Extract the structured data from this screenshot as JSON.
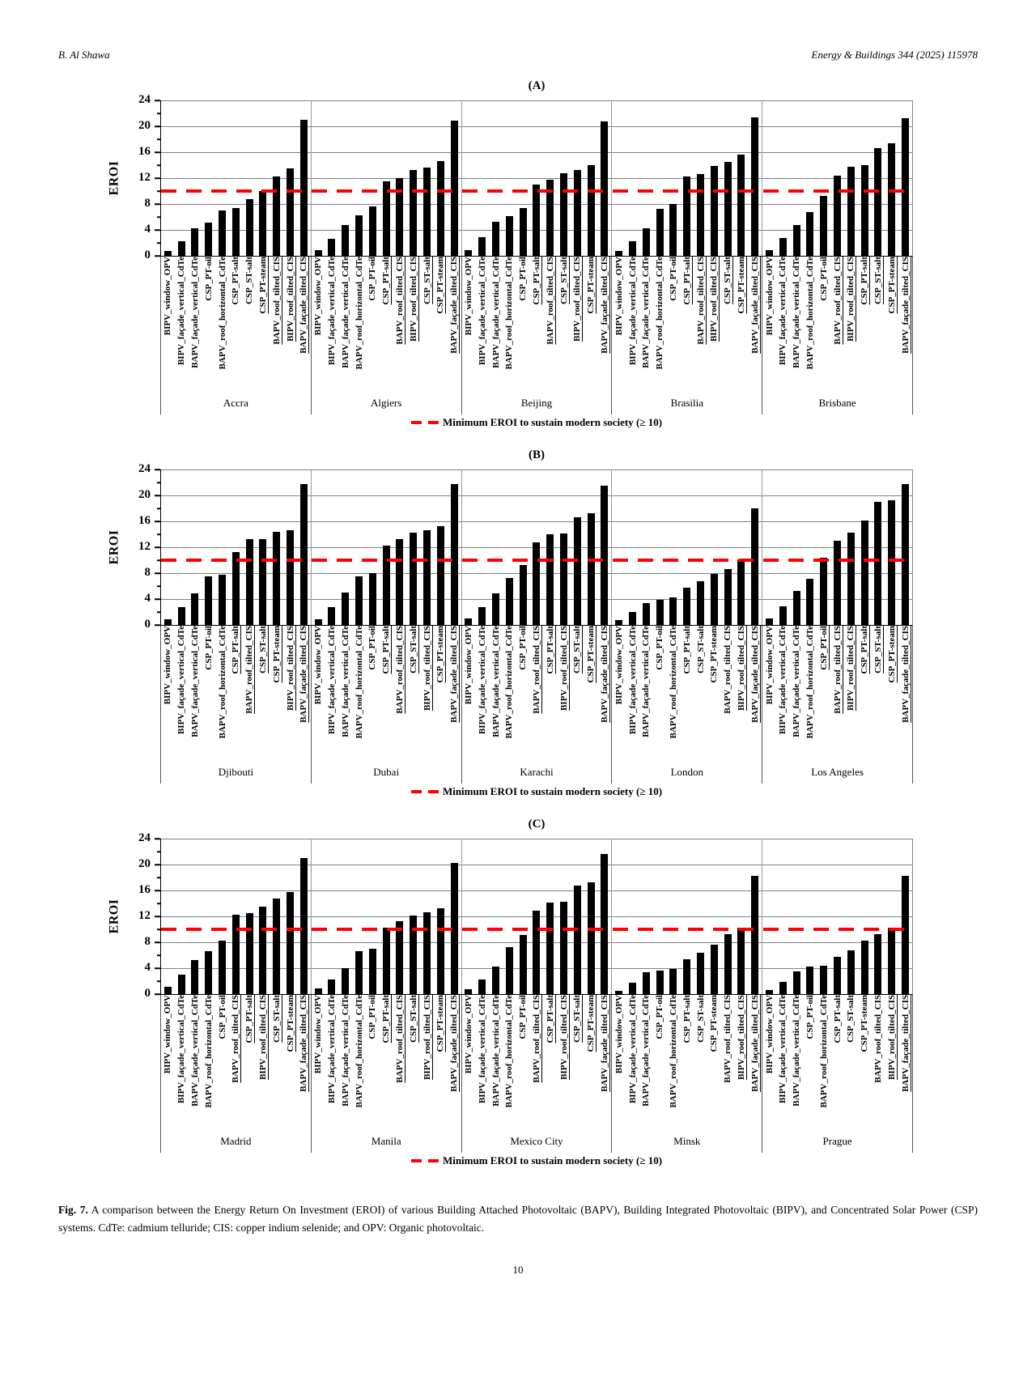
{
  "header": {
    "author": "B. Al Shawa",
    "journal": "Energy & Buildings 344 (2025) 115978"
  },
  "page_number": "10",
  "caption": {
    "label": "Fig. 7.",
    "text": "A comparison between the Energy Return On Investment (EROI) of various Building Attached Photovoltaic (BAPV), Building Integrated Photovoltaic (BIPV), and Concentrated Solar Power (CSP) systems. CdTe: cadmium telluride; CIS: copper indium selenide; and OPV: Organic photovoltaic."
  },
  "colors": {
    "bar": "#000000",
    "threshold_line": "#ff0000",
    "gridline": "#808080"
  },
  "chart_data": [
    {
      "type": "bar",
      "title": "(A)",
      "ylabel": "EROI",
      "ylim": [
        0,
        24
      ],
      "yticks": [
        0,
        4,
        8,
        12,
        16,
        20,
        24
      ],
      "minor_tick_step": 2,
      "grid": true,
      "threshold": 10,
      "legend": "Minimum EROI to sustain modern society (≥ 10)",
      "legend_position": "bottom",
      "groups": [
        {
          "city": "Accra",
          "bars": [
            [
              "BIPV_window_OPV",
              0.8
            ],
            [
              "BIPV_façade_vertical_CdTe",
              2.3
            ],
            [
              "BAPV_façade_vertical_CdTe",
              4.3
            ],
            [
              "CSP_PT-oil",
              5.1
            ],
            [
              "BAPV_roof_horizontal_CdTe",
              7.0
            ],
            [
              "CSP_PT-salt",
              7.4
            ],
            [
              "CSP_ST-salt",
              8.8
            ],
            [
              "CSP_PT-steam",
              10.0
            ],
            [
              "BAPV_roof_tilted_CIS",
              12.2
            ],
            [
              "BIPV_roof_tilted_CIS",
              13.5
            ],
            [
              "BAPV_façade_tilted_CIS",
              21.0
            ]
          ]
        },
        {
          "city": "Algiers",
          "bars": [
            [
              "BIPV_window_OPV",
              0.9
            ],
            [
              "BIPV_façade_vertical_CdTe",
              2.6
            ],
            [
              "BAPV_façade_vertical_CdTe",
              4.7
            ],
            [
              "BAPV_roof_horizontal_CdTe",
              6.3
            ],
            [
              "CSP_PT-oil",
              7.6
            ],
            [
              "CSP_PT-salt",
              11.5
            ],
            [
              "BAPV_roof_tilted_CIS",
              12.0
            ],
            [
              "BIPV_roof_tilted_CIS",
              13.2
            ],
            [
              "CSP_ST-salt",
              13.6
            ],
            [
              "CSP_PT-steam",
              14.6
            ],
            [
              "BAPV_façade_tilted_CIS",
              20.9
            ]
          ]
        },
        {
          "city": "Beijing",
          "bars": [
            [
              "BIPV_window_OPV",
              0.9
            ],
            [
              "BIPV_façade_vertical_CdTe",
              2.9
            ],
            [
              "BAPV_façade_vertical_CdTe",
              5.2
            ],
            [
              "BAPV_roof_horizontal_CdTe",
              6.1
            ],
            [
              "CSP_PT-oil",
              7.4
            ],
            [
              "CSP_PT-salt",
              11.0
            ],
            [
              "BAPV_roof_tilted_CIS",
              11.8
            ],
            [
              "CSP_ST-salt",
              12.8
            ],
            [
              "BIPV_roof_tilted_CIS",
              13.2
            ],
            [
              "CSP_PT-steam",
              14.0
            ],
            [
              "BAPV_façade_tilted_CIS",
              20.8
            ]
          ]
        },
        {
          "city": "Brasilia",
          "bars": [
            [
              "BIPV_window_OPV",
              0.7
            ],
            [
              "BIPV_façade_vertical_CdTe",
              2.3
            ],
            [
              "BAPV_façade_vertical_CdTe",
              4.3
            ],
            [
              "BAPV_roof_horizontal_CdTe",
              7.3
            ],
            [
              "CSP_PT-oil",
              8.0
            ],
            [
              "CSP_PT-salt",
              12.3
            ],
            [
              "BAPV_roof_tilted_CIS",
              12.6
            ],
            [
              "BIPV_roof_tilted_CIS",
              13.9
            ],
            [
              "CSP_ST-salt",
              14.5
            ],
            [
              "CSP_PT-steam",
              15.6
            ],
            [
              "BAPV_façade_tilted_CIS",
              21.4
            ]
          ]
        },
        {
          "city": "Brisbane",
          "bars": [
            [
              "BIPV_window_OPV",
              0.9
            ],
            [
              "BIPV_façade_vertical_CdTe",
              2.7
            ],
            [
              "BAPV_façade_vertical_CdTe",
              4.8
            ],
            [
              "BAPV_roof_horizontal_CdTe",
              6.8
            ],
            [
              "CSP_PT-oil",
              9.2
            ],
            [
              "BAPV_roof_tilted_CIS",
              12.4
            ],
            [
              "BIPV_roof_tilted_CIS",
              13.7
            ],
            [
              "CSP_PT-salt",
              14.0
            ],
            [
              "CSP_ST-salt",
              16.6
            ],
            [
              "CSP_PT-steam",
              17.4
            ],
            [
              "BAPV_façade_tilted_CIS",
              21.3
            ]
          ]
        }
      ]
    },
    {
      "type": "bar",
      "title": "(B)",
      "ylabel": "EROI",
      "ylim": [
        0,
        24
      ],
      "yticks": [
        0,
        4,
        8,
        12,
        16,
        20,
        24
      ],
      "minor_tick_step": 2,
      "grid": true,
      "threshold": 10,
      "legend": "Minimum EROI to sustain modern society (≥ 10)",
      "legend_position": "bottom",
      "groups": [
        {
          "city": "Djibouti",
          "bars": [
            [
              "BIPV_window_OPV",
              0.9
            ],
            [
              "BIPV_façade_vertical_CdTe",
              2.7
            ],
            [
              "BAPV_façade_vertical_CdTe",
              4.9
            ],
            [
              "CSP_PT-oil",
              7.5
            ],
            [
              "BAPV_roof_horizontal_CdTe",
              7.8
            ],
            [
              "CSP_PT-salt",
              11.3
            ],
            [
              "BAPV_roof_tilted_CIS",
              13.3
            ],
            [
              "CSP_ST-salt",
              13.3
            ],
            [
              "CSP_PT-steam",
              14.4
            ],
            [
              "BIPV_roof_tilted_CIS",
              14.6
            ],
            [
              "BAPV_façade_tilted_CIS",
              21.8
            ]
          ]
        },
        {
          "city": "Dubai",
          "bars": [
            [
              "BIPV_window_OPV",
              0.9
            ],
            [
              "BIPV_façade_vertical_CdTe",
              2.8
            ],
            [
              "BAPV_façade_vertical_CdTe",
              5.0
            ],
            [
              "BAPV_roof_horizontal_CdTe",
              7.5
            ],
            [
              "CSP_PT-oil",
              8.0
            ],
            [
              "CSP_PT-salt",
              12.2
            ],
            [
              "BAPV_roof_tilted_CIS",
              13.3
            ],
            [
              "CSP_ST-salt",
              14.2
            ],
            [
              "BIPV_roof_tilted_CIS",
              14.6
            ],
            [
              "CSP_PT-steam",
              15.2
            ],
            [
              "BAPV_façade_tilted_CIS",
              21.8
            ]
          ]
        },
        {
          "city": "Karachi",
          "bars": [
            [
              "BIPV_window_OPV",
              1.0
            ],
            [
              "BIPV_façade_vertical_CdTe",
              2.8
            ],
            [
              "BAPV_façade_vertical_CdTe",
              4.9
            ],
            [
              "BAPV_roof_horizontal_CdTe",
              7.2
            ],
            [
              "CSP_PT-oil",
              9.3
            ],
            [
              "BAPV_roof_tilted_CIS",
              12.8
            ],
            [
              "CSP_PT-salt",
              14.0
            ],
            [
              "BIPV_roof_tilted_CIS",
              14.1
            ],
            [
              "CSP_ST-salt",
              16.6
            ],
            [
              "CSP_PT-steam",
              17.3
            ],
            [
              "BAPV_façade_tilted_CIS",
              21.5
            ]
          ]
        },
        {
          "city": "London",
          "bars": [
            [
              "BIPV_window_OPV",
              0.7
            ],
            [
              "BIPV_façade_vertical_CdTe",
              2.0
            ],
            [
              "BAPV_façade_vertical_CdTe",
              3.4
            ],
            [
              "CSP_PT-oil",
              3.9
            ],
            [
              "BAPV_roof_horizontal_CdTe",
              4.2
            ],
            [
              "CSP_PT-salt",
              5.7
            ],
            [
              "CSP_ST-salt",
              6.8
            ],
            [
              "CSP_PT-steam",
              7.9
            ],
            [
              "BAPV_roof_tilted_CIS",
              8.6
            ],
            [
              "BIPV_roof_tilted_CIS",
              10.0
            ],
            [
              "BAPV_façade_tilted_CIS",
              18.0
            ]
          ]
        },
        {
          "city": "Los Angeles",
          "bars": [
            [
              "BIPV_window_OPV",
              1.0
            ],
            [
              "BIPV_façade_vertical_CdTe",
              2.9
            ],
            [
              "BAPV_façade_vertical_CdTe",
              5.3
            ],
            [
              "BAPV_roof_horizontal_CdTe",
              7.1
            ],
            [
              "CSP_PT-oil",
              10.4
            ],
            [
              "BAPV_roof_tilted_CIS",
              13.0
            ],
            [
              "BIPV_roof_tilted_CIS",
              14.3
            ],
            [
              "CSP_PT-salt",
              16.1
            ],
            [
              "CSP_ST-salt",
              19.0
            ],
            [
              "CSP_PT-steam",
              19.2
            ],
            [
              "BAPV_façade_tilted_CIS",
              21.7
            ]
          ]
        }
      ]
    },
    {
      "type": "bar",
      "title": "(C)",
      "ylabel": "EROI",
      "ylim": [
        0,
        24
      ],
      "yticks": [
        0,
        4,
        8,
        12,
        16,
        20,
        24
      ],
      "minor_tick_step": 2,
      "grid": true,
      "threshold": 10,
      "legend": "Minimum EROI to sustain modern society (≥ 10)",
      "legend_position": "bottom",
      "groups": [
        {
          "city": "Madrid",
          "bars": [
            [
              "BIPV_window_OPV",
              1.1
            ],
            [
              "BIPV_façade_vertical_CdTe",
              3.0
            ],
            [
              "BAPV_façade_vertical_CdTe",
              5.2
            ],
            [
              "BAPV_roof_horizontal_CdTe",
              6.6
            ],
            [
              "CSP_PT-oil",
              8.3
            ],
            [
              "BAPV_roof_tilted_CIS",
              12.2
            ],
            [
              "CSP_PT-salt",
              12.5
            ],
            [
              "BIPV_roof_tilted_CIS",
              13.5
            ],
            [
              "CSP_ST-salt",
              14.7
            ],
            [
              "CSP_PT-steam",
              15.7
            ],
            [
              "BAPV_façade_tilted_CIS",
              21.0
            ]
          ]
        },
        {
          "city": "Manila",
          "bars": [
            [
              "BIPV_window_OPV",
              0.9
            ],
            [
              "BIPV_façade_vertical_CdTe",
              2.3
            ],
            [
              "BAPV_façade_vertical_CdTe",
              4.0
            ],
            [
              "BAPV_roof_horizontal_CdTe",
              6.6
            ],
            [
              "CSP_PT-oil",
              7.0
            ],
            [
              "CSP_PT-salt",
              10.3
            ],
            [
              "BAPV_roof_tilted_CIS",
              11.3
            ],
            [
              "CSP_ST-salt",
              12.1
            ],
            [
              "BIPV_roof_tilted_CIS",
              12.6
            ],
            [
              "CSP_PT-steam",
              13.2
            ],
            [
              "BAPV_façade_tilted_CIS",
              20.3
            ]
          ]
        },
        {
          "city": "Mexico City",
          "bars": [
            [
              "BIPV_window_OPV",
              0.7
            ],
            [
              "BIPV_façade_vertical_CdTe",
              2.2
            ],
            [
              "BAPV_façade_vertical_CdTe",
              4.3
            ],
            [
              "BAPV_roof_horizontal_CdTe",
              7.3
            ],
            [
              "CSP_PT-oil",
              9.1
            ],
            [
              "BAPV_roof_tilted_CIS",
              12.9
            ],
            [
              "CSP_PT-salt",
              14.1
            ],
            [
              "BIPV_roof_tilted_CIS",
              14.3
            ],
            [
              "CSP_ST-salt",
              16.7
            ],
            [
              "CSP_PT-steam",
              17.3
            ],
            [
              "BAPV_façade_tilted_CIS",
              21.6
            ]
          ]
        },
        {
          "city": "Minsk",
          "bars": [
            [
              "BIPV_window_OPV",
              0.5
            ],
            [
              "BIPV_façade_vertical_CdTe",
              1.8
            ],
            [
              "BAPV_façade_vertical_CdTe",
              3.4
            ],
            [
              "CSP_PT-oil",
              3.6
            ],
            [
              "BAPV_roof_horizontal_CdTe",
              3.9
            ],
            [
              "CSP_PT-salt",
              5.4
            ],
            [
              "CSP_ST-salt",
              6.4
            ],
            [
              "CSP_PT-steam",
              7.6
            ],
            [
              "BAPV_roof_tilted_CIS",
              9.2
            ],
            [
              "BIPV_roof_tilted_CIS",
              10.2
            ],
            [
              "BAPV_façade_tilted_CIS",
              18.3
            ]
          ]
        },
        {
          "city": "Prague",
          "bars": [
            [
              "BIPV_window_OPV",
              0.6
            ],
            [
              "BIPV_façade_vertical_CdTe",
              1.9
            ],
            [
              "BAPV_façade_vertical_CdTe",
              3.5
            ],
            [
              "CSP_PT-oil",
              4.2
            ],
            [
              "BAPV_roof_horizontal_CdTe",
              4.4
            ],
            [
              "CSP_PT-salt",
              5.8
            ],
            [
              "CSP_ST-salt",
              6.8
            ],
            [
              "CSP_PT-steam",
              8.2
            ],
            [
              "BAPV_roof_tilted_CIS",
              9.2
            ],
            [
              "BIPV_roof_tilted_CIS",
              10.2
            ],
            [
              "BAPV_façade_tilted_CIS",
              18.3
            ]
          ]
        }
      ]
    }
  ]
}
